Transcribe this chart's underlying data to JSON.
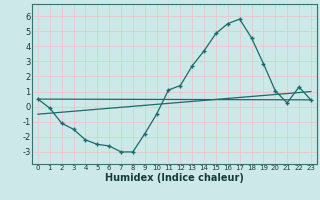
{
  "xlabel": "Humidex (Indice chaleur)",
  "background_color": "#cce8e8",
  "grid_color": "#b0d8d8",
  "line_color": "#1a6b6b",
  "xlim": [
    -0.5,
    23.5
  ],
  "ylim": [
    -3.8,
    6.8
  ],
  "xticks": [
    0,
    1,
    2,
    3,
    4,
    5,
    6,
    7,
    8,
    9,
    10,
    11,
    12,
    13,
    14,
    15,
    16,
    17,
    18,
    19,
    20,
    21,
    22,
    23
  ],
  "yticks": [
    -3,
    -2,
    -1,
    0,
    1,
    2,
    3,
    4,
    5,
    6
  ],
  "curve_x": [
    0,
    1,
    2,
    3,
    4,
    5,
    6,
    7,
    8,
    9,
    10,
    11,
    12,
    13,
    14,
    15,
    16,
    17,
    18,
    19,
    20,
    21,
    22,
    23
  ],
  "curve_y": [
    0.5,
    -0.1,
    -1.1,
    -1.5,
    -2.2,
    -2.5,
    -2.6,
    -3.0,
    -3.0,
    -1.8,
    -0.5,
    1.1,
    1.4,
    2.7,
    3.7,
    4.85,
    5.5,
    5.8,
    4.55,
    2.85,
    1.05,
    0.25,
    1.3,
    0.45
  ],
  "trend1_x": [
    0,
    23
  ],
  "trend1_y": [
    0.5,
    0.45
  ],
  "trend2_x": [
    0,
    23
  ],
  "trend2_y": [
    -0.5,
    1.0
  ],
  "xlabel_fontsize": 7,
  "tick_fontsize_x": 5,
  "tick_fontsize_y": 6
}
